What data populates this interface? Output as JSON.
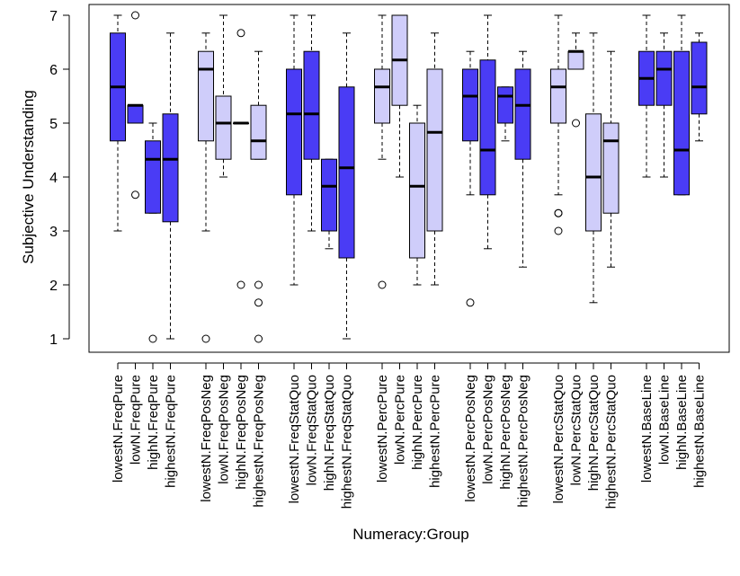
{
  "chart_data": {
    "type": "boxplot",
    "xlabel": "Numeracy:Group",
    "ylabel": "Subjective Understanding",
    "ylim": [
      1,
      7
    ],
    "yticks": [
      1,
      2,
      3,
      4,
      5,
      6,
      7
    ],
    "colors": {
      "dark": "#4a3cf5",
      "light": "#cfcdfa",
      "stroke": "#000000"
    },
    "groups": [
      {
        "label": "lowestN.FreqPure",
        "color": "dark",
        "min": 3,
        "q1": 4.67,
        "median": 5.67,
        "q3": 6.67,
        "max": 7,
        "outliers": []
      },
      {
        "label": "lowN.FreqPure",
        "color": "dark",
        "min": 5,
        "q1": 5,
        "median": 5.33,
        "q3": 5.33,
        "max": 5.33,
        "outliers": [
          7,
          3.67
        ]
      },
      {
        "label": "highN.FreqPure",
        "color": "dark",
        "min": 3.33,
        "q1": 3.33,
        "median": 4.33,
        "q3": 4.67,
        "max": 5,
        "outliers": [
          1
        ]
      },
      {
        "label": "highestN.FreqPure",
        "color": "dark",
        "min": 1,
        "q1": 3.17,
        "median": 4.33,
        "q3": 5.17,
        "max": 6.67,
        "outliers": []
      },
      {
        "label": "lowestN.FreqPosNeg",
        "color": "light",
        "min": 3,
        "q1": 4.67,
        "median": 6,
        "q3": 6.33,
        "max": 6.67,
        "outliers": [
          1
        ]
      },
      {
        "label": "lowN.FreqPosNeg",
        "color": "light",
        "min": 4,
        "q1": 4.33,
        "median": 5,
        "q3": 5.5,
        "max": 7,
        "outliers": []
      },
      {
        "label": "highN.FreqPosNeg",
        "color": "light",
        "min": 5,
        "q1": 5,
        "median": 5,
        "q3": 5,
        "max": 5,
        "outliers": [
          6.67,
          2
        ]
      },
      {
        "label": "highestN.FreqPosNeg",
        "color": "light",
        "min": 4.33,
        "q1": 4.33,
        "median": 4.67,
        "q3": 5.33,
        "max": 6.33,
        "outliers": [
          2,
          1.67,
          1
        ]
      },
      {
        "label": "lowestN.FreqStatQuo",
        "color": "dark",
        "min": 2,
        "q1": 3.67,
        "median": 5.17,
        "q3": 6,
        "max": 7,
        "outliers": []
      },
      {
        "label": "lowN.FreqStatQuo",
        "color": "dark",
        "min": 3,
        "q1": 4.33,
        "median": 5.17,
        "q3": 6.33,
        "max": 7,
        "outliers": []
      },
      {
        "label": "highN.FreqStatQuo",
        "color": "dark",
        "min": 2.67,
        "q1": 3,
        "median": 3.83,
        "q3": 4.33,
        "max": 4.33,
        "outliers": []
      },
      {
        "label": "highestN.FreqStatQuo",
        "color": "dark",
        "min": 1,
        "q1": 2.5,
        "median": 4.17,
        "q3": 5.67,
        "max": 6.67,
        "outliers": []
      },
      {
        "label": "lowestN.PercPure",
        "color": "light",
        "min": 4.33,
        "q1": 5,
        "median": 5.67,
        "q3": 6,
        "max": 7,
        "outliers": [
          2
        ]
      },
      {
        "label": "lowN.PercPure",
        "color": "light",
        "min": 4,
        "q1": 5.33,
        "median": 6.17,
        "q3": 7,
        "max": 7,
        "outliers": []
      },
      {
        "label": "highN.PercPure",
        "color": "light",
        "min": 2,
        "q1": 2.5,
        "median": 3.83,
        "q3": 5,
        "max": 5.33,
        "outliers": []
      },
      {
        "label": "highestN.PercPure",
        "color": "light",
        "min": 2,
        "q1": 3,
        "median": 4.83,
        "q3": 6,
        "max": 6.67,
        "outliers": []
      },
      {
        "label": "lowestN.PercPosNeg",
        "color": "dark",
        "min": 3.67,
        "q1": 4.67,
        "median": 5.5,
        "q3": 6,
        "max": 6.33,
        "outliers": [
          1.67
        ]
      },
      {
        "label": "lowN.PercPosNeg",
        "color": "dark",
        "min": 2.67,
        "q1": 3.67,
        "median": 4.5,
        "q3": 6.17,
        "max": 7,
        "outliers": []
      },
      {
        "label": "highN.PercPosNeg",
        "color": "dark",
        "min": 4.67,
        "q1": 5,
        "median": 5.5,
        "q3": 5.67,
        "max": 5.67,
        "outliers": []
      },
      {
        "label": "highestN.PercPosNeg",
        "color": "dark",
        "min": 2.33,
        "q1": 4.33,
        "median": 5.33,
        "q3": 6,
        "max": 6.33,
        "outliers": []
      },
      {
        "label": "lowestN.PercStatQuo",
        "color": "light",
        "min": 3.67,
        "q1": 5,
        "median": 5.67,
        "q3": 6,
        "max": 7,
        "outliers": [
          3.33,
          3.33,
          3
        ]
      },
      {
        "label": "lowN.PercStatQuo",
        "color": "light",
        "min": 6,
        "q1": 6,
        "median": 6.33,
        "q3": 6.33,
        "max": 6.67,
        "outliers": [
          5
        ]
      },
      {
        "label": "highN.PercStatQuo",
        "color": "light",
        "min": 1.67,
        "q1": 3,
        "median": 4,
        "q3": 5.17,
        "max": 6.67,
        "outliers": []
      },
      {
        "label": "highestN.PercStatQuo",
        "color": "light",
        "min": 2.33,
        "q1": 3.33,
        "median": 4.67,
        "q3": 5,
        "max": 6.33,
        "outliers": []
      },
      {
        "label": "lowestN.BaseLine",
        "color": "dark",
        "min": 4,
        "q1": 5.33,
        "median": 5.83,
        "q3": 6.33,
        "max": 7,
        "outliers": []
      },
      {
        "label": "lowN.BaseLine",
        "color": "dark",
        "min": 4,
        "q1": 5.33,
        "median": 6,
        "q3": 6.33,
        "max": 6.67,
        "outliers": []
      },
      {
        "label": "highN.BaseLine",
        "color": "dark",
        "min": 3.67,
        "q1": 3.67,
        "median": 4.5,
        "q3": 6.33,
        "max": 7,
        "outliers": []
      },
      {
        "label": "highestN.BaseLine",
        "color": "dark",
        "min": 4.67,
        "q1": 5.17,
        "median": 5.67,
        "q3": 6.5,
        "max": 6.67,
        "outliers": []
      }
    ]
  }
}
